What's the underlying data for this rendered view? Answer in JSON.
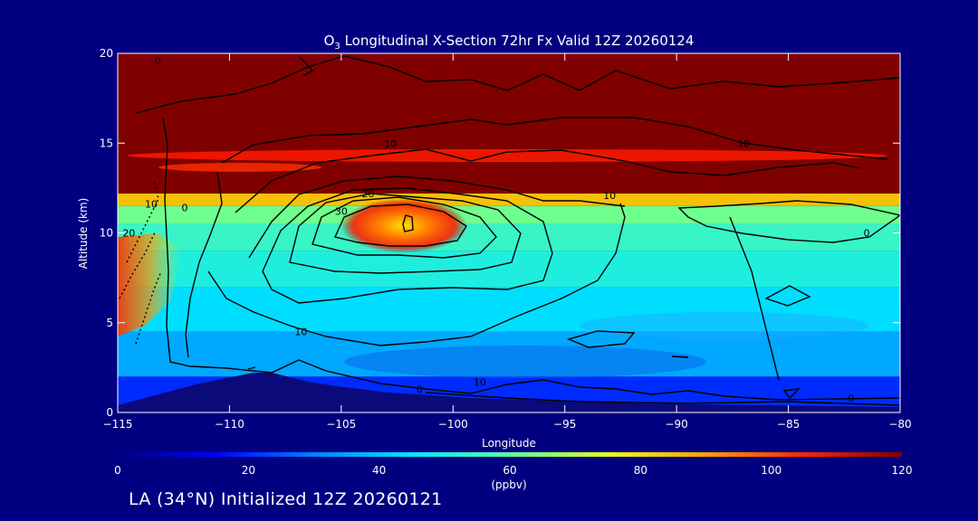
{
  "title_main": "O",
  "title_sub": "3",
  "title_rest": " Longitudinal X-Section 72hr  Fx Valid 12Z 20260124",
  "footer": "LA (34°N) Initialized 12Z 20260121",
  "colors": {
    "background": "#000080",
    "text": "#ffffff",
    "contour": "#000000",
    "terrain": "#0a0a7a"
  },
  "chart_data": {
    "type": "heatmap",
    "xlabel": "Longitude",
    "ylabel": "Altitude (km)",
    "xlim": [
      -115,
      -80
    ],
    "ylim": [
      0,
      20
    ],
    "x_ticks": [
      {
        "value": -115,
        "label": "−115"
      },
      {
        "value": -110,
        "label": "−110"
      },
      {
        "value": -105,
        "label": "−105"
      },
      {
        "value": -100,
        "label": "−100"
      },
      {
        "value": -95,
        "label": "−95"
      },
      {
        "value": -90,
        "label": "−90"
      },
      {
        "value": -85,
        "label": "−85"
      },
      {
        "value": -80,
        "label": "−80"
      }
    ],
    "y_ticks": [
      {
        "value": 0,
        "label": "0"
      },
      {
        "value": 5,
        "label": "5"
      },
      {
        "value": 10,
        "label": "10"
      },
      {
        "value": 15,
        "label": "15"
      },
      {
        "value": 20,
        "label": "20"
      }
    ],
    "colorbar": {
      "range": [
        0,
        120
      ],
      "unit_label": "(ppbv)",
      "ticks": [
        {
          "value": 0,
          "label": "0"
        },
        {
          "value": 20,
          "label": "20"
        },
        {
          "value": 40,
          "label": "40"
        },
        {
          "value": 60,
          "label": "60"
        },
        {
          "value": 80,
          "label": "80"
        },
        {
          "value": 100,
          "label": "100"
        },
        {
          "value": 120,
          "label": "120"
        }
      ]
    },
    "fill_bands": [
      {
        "y_from": 0,
        "y_to": 2,
        "value": 20
      },
      {
        "y_from": 2,
        "y_to": 4.5,
        "value": 36
      },
      {
        "y_from": 4.5,
        "y_to": 7,
        "value": 44
      },
      {
        "y_from": 7,
        "y_to": 9,
        "value": 50
      },
      {
        "y_from": 9,
        "y_to": 10.5,
        "value": 54
      },
      {
        "y_from": 10.5,
        "y_to": 11.5,
        "value": 62
      },
      {
        "y_from": 11.5,
        "y_to": 12.2,
        "value": 85
      },
      {
        "y_from": 12.2,
        "y_to": 20,
        "value": 120
      }
    ],
    "ozone_max": {
      "lon": -102.2,
      "alt": 10.4,
      "value": 120
    },
    "contour_labels": [
      {
        "lon": -113.2,
        "alt": 19.6,
        "label": "0"
      },
      {
        "lon": -102.8,
        "alt": 15.0,
        "label": "10"
      },
      {
        "lon": -93.0,
        "alt": 12.1,
        "label": "10"
      },
      {
        "lon": -87.0,
        "alt": 15.0,
        "label": "10"
      },
      {
        "lon": -103.8,
        "alt": 12.2,
        "label": "20"
      },
      {
        "lon": -105.0,
        "alt": 11.2,
        "label": "30"
      },
      {
        "lon": -112.0,
        "alt": 11.4,
        "label": "0"
      },
      {
        "lon": -113.5,
        "alt": 11.6,
        "label": "10"
      },
      {
        "lon": -114.5,
        "alt": 10.0,
        "label": "20"
      },
      {
        "lon": -81.5,
        "alt": 10.0,
        "label": "0"
      },
      {
        "lon": -106.8,
        "alt": 4.5,
        "label": "10"
      },
      {
        "lon": -98.8,
        "alt": 1.7,
        "label": "10"
      },
      {
        "lon": -101.5,
        "alt": 1.3,
        "label": "0"
      },
      {
        "lon": -82.2,
        "alt": 0.8,
        "label": "0"
      }
    ]
  }
}
